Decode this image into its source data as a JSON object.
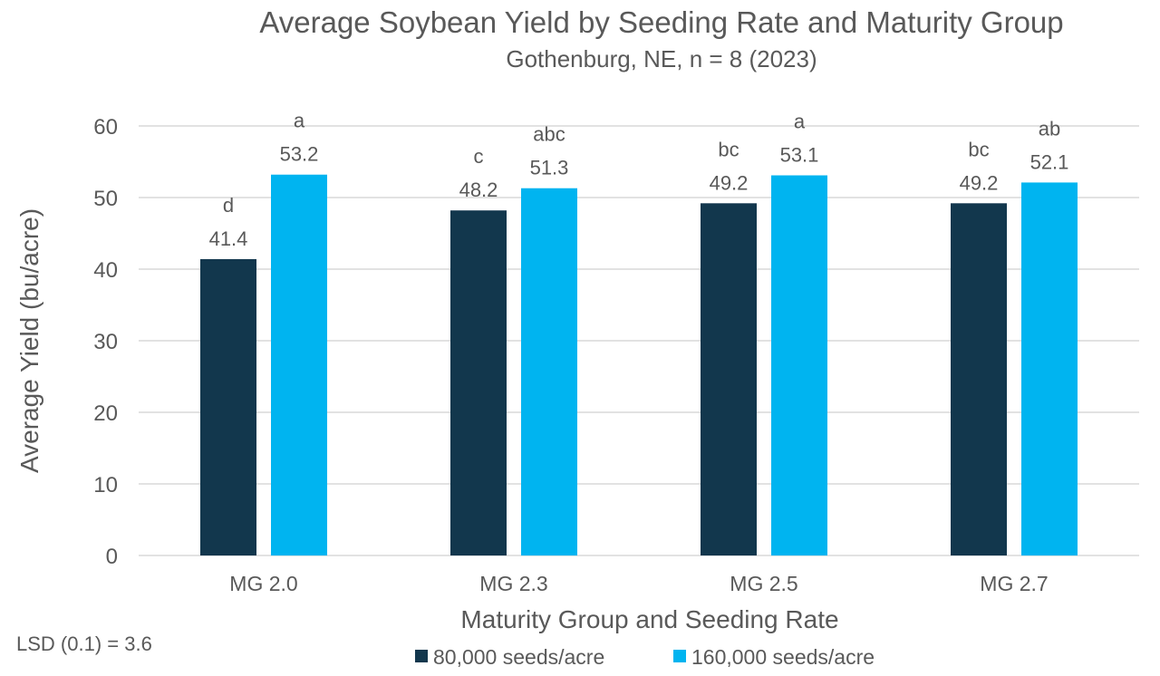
{
  "chart_data": {
    "type": "bar",
    "title": "Average Soybean Yield by Seeding Rate and Maturity Group",
    "subtitle": "Gothenburg, NE, n = 8 (2023)",
    "xlabel": "Maturity Group and Seeding Rate",
    "ylabel": "Average Yield (bu/acre)",
    "ylim": [
      0,
      60
    ],
    "yticks": [
      0,
      10,
      20,
      30,
      40,
      50,
      60
    ],
    "grid": true,
    "legend_position": "bottom",
    "categories": [
      "MG 2.0",
      "MG 2.3",
      "MG 2.5",
      "MG 2.7"
    ],
    "series": [
      {
        "name": "80,000 seeds/acre",
        "color": "#12374d",
        "values": [
          41.4,
          48.2,
          49.2,
          49.2
        ],
        "letters": [
          "d",
          "c",
          "bc",
          "bc"
        ]
      },
      {
        "name": "160,000 seeds/acre",
        "color": "#00b4f0",
        "values": [
          53.2,
          51.3,
          53.1,
          52.1
        ],
        "letters": [
          "a",
          "abc",
          "a",
          "ab"
        ]
      }
    ],
    "annotation": "LSD (0.1) = 3.6"
  },
  "colors": {
    "text": "#595959",
    "grid": "#d9d9d9"
  }
}
